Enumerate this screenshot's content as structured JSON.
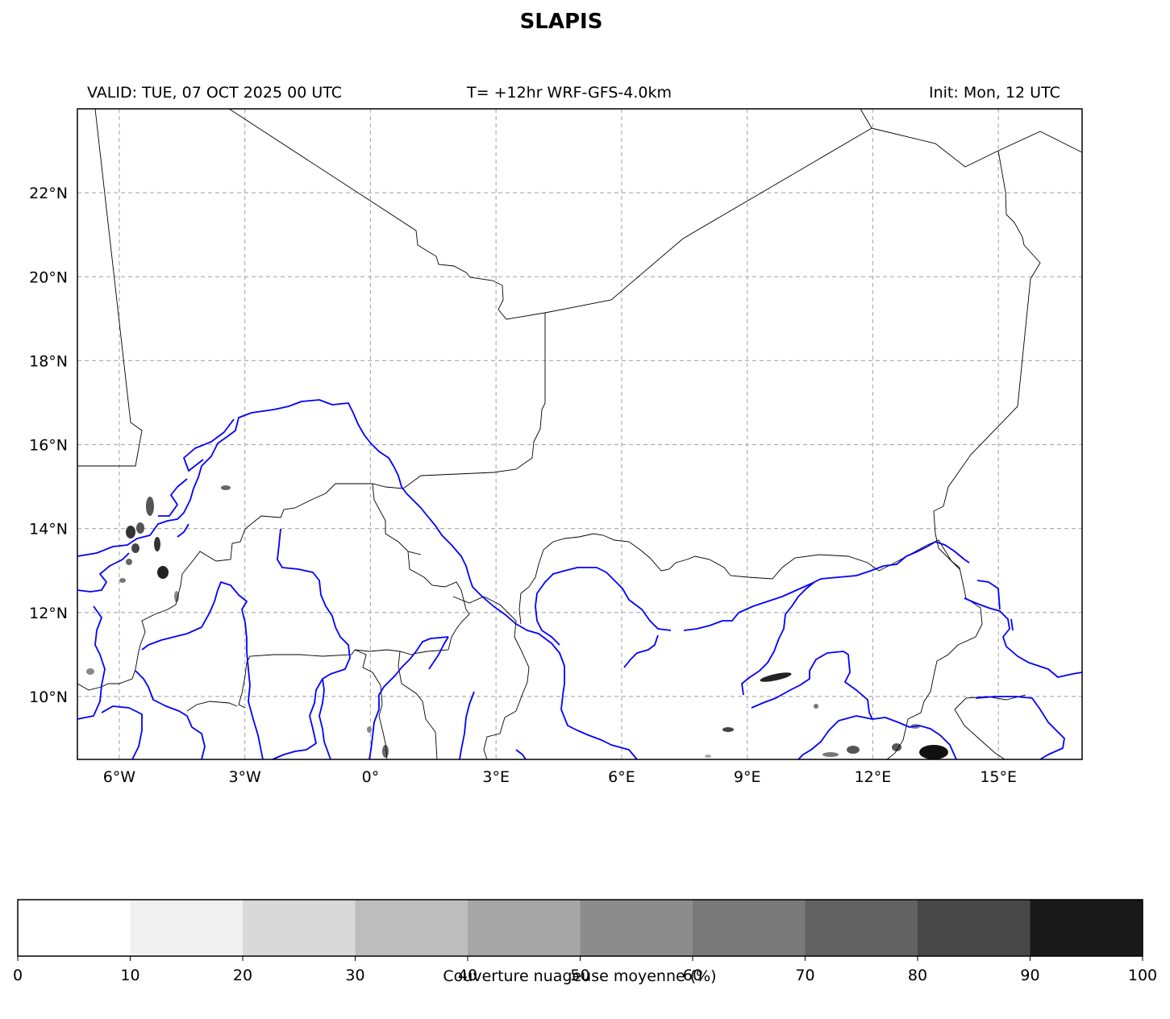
{
  "header": {
    "title": "SLAPIS",
    "valid": "VALID: TUE, 07 OCT 2025 00 UTC",
    "timestep": "T= +12hr WRF-GFS-4.0km",
    "init": "Init: Mon, 12 UTC"
  },
  "map": {
    "extent": {
      "lon": [
        -7,
        17
      ],
      "lat": [
        8.5,
        24
      ]
    },
    "lon_ticks": [
      {
        "value": -6,
        "label": "6°W"
      },
      {
        "value": -3,
        "label": "3°W"
      },
      {
        "value": 0,
        "label": "0°"
      },
      {
        "value": 3,
        "label": "3°E"
      },
      {
        "value": 6,
        "label": "6°E"
      },
      {
        "value": 9,
        "label": "9°E"
      },
      {
        "value": 12,
        "label": "12°E"
      },
      {
        "value": 15,
        "label": "15°E"
      }
    ],
    "lat_ticks": [
      {
        "value": 10,
        "label": "10°N"
      },
      {
        "value": 12,
        "label": "12°N"
      },
      {
        "value": 14,
        "label": "14°N"
      },
      {
        "value": 16,
        "label": "16°N"
      },
      {
        "value": 18,
        "label": "18°N"
      },
      {
        "value": 20,
        "label": "20°N"
      },
      {
        "value": 22,
        "label": "22°N"
      }
    ],
    "gridlines": true,
    "colors": {
      "borders": "#000000",
      "rivers": "#0000ff",
      "grid": "#b0b0b0"
    }
  },
  "colorbar": {
    "label": "Couverture nuageuse moyenne (%)",
    "ticks": [
      "0",
      "10",
      "20",
      "30",
      "40",
      "50",
      "60",
      "70",
      "80",
      "90",
      "100"
    ],
    "colors": [
      "#ffffff",
      "#f0f0f0",
      "#d9d9d9",
      "#bdbdbd",
      "#a6a6a6",
      "#8c8c8c",
      "#797979",
      "#626262",
      "#474747",
      "#191919"
    ]
  }
}
